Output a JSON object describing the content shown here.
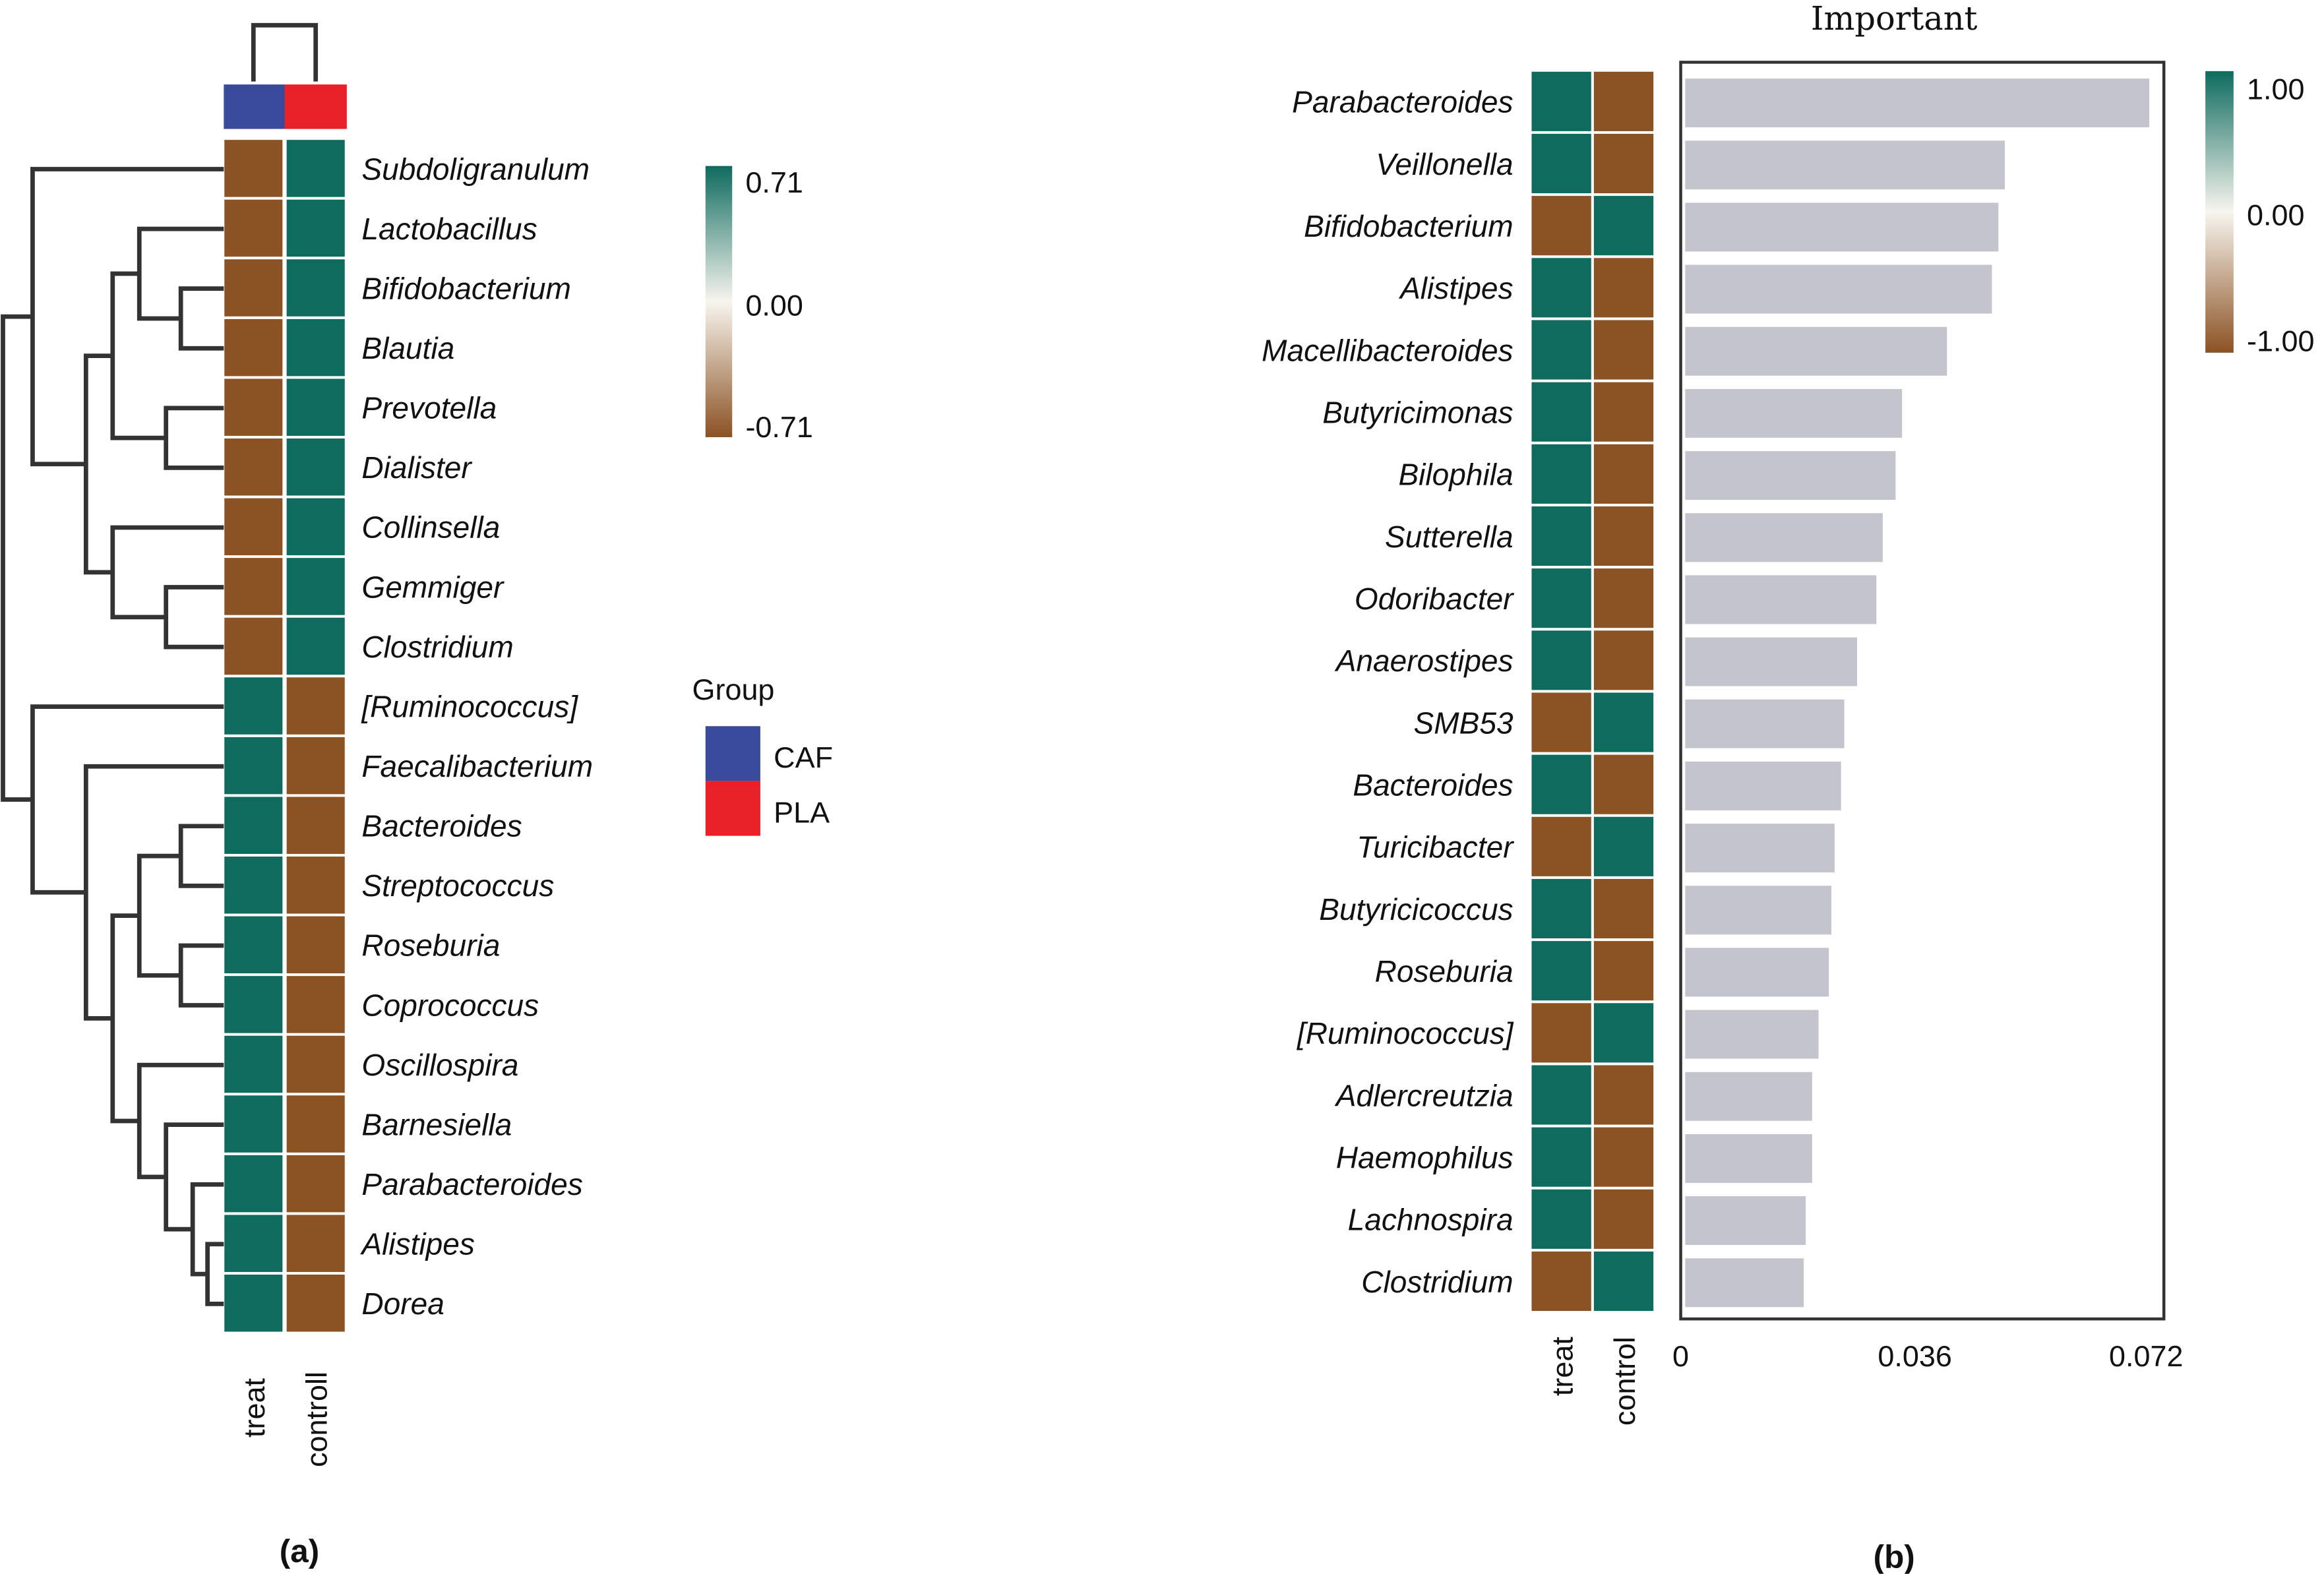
{
  "colors": {
    "positive": "#0e6b5e",
    "negative": "#8b5223",
    "mid": "#f7f5ee",
    "caf": "#3a4a9a",
    "pla": "#e82128",
    "bar": "#c4c4cc"
  },
  "chart_data": [
    {
      "type": "heatmap",
      "panel_label": "(a)",
      "columns": [
        "treat",
        "controll"
      ],
      "column_groups": [
        "CAF",
        "PLA"
      ],
      "rows": [
        "Subdoligranulum",
        "Lactobacillus",
        "Bifidobacterium",
        "Blautia",
        "Prevotella",
        "Dialister",
        "Collinsella",
        "Gemmiger",
        "Clostridium",
        "[Ruminococcus]",
        "Faecalibacterium",
        "Bacteroides",
        "Streptococcus",
        "Roseburia",
        "Coprococcus",
        "Oscillospira",
        "Barnesiella",
        "Parabacteroides",
        "Alistipes",
        "Dorea"
      ],
      "values": [
        [
          -0.71,
          0.71
        ],
        [
          -0.71,
          0.71
        ],
        [
          -0.71,
          0.71
        ],
        [
          -0.71,
          0.71
        ],
        [
          -0.71,
          0.71
        ],
        [
          -0.71,
          0.71
        ],
        [
          -0.71,
          0.71
        ],
        [
          -0.71,
          0.71
        ],
        [
          -0.71,
          0.71
        ],
        [
          0.71,
          -0.71
        ],
        [
          0.71,
          -0.71
        ],
        [
          0.71,
          -0.71
        ],
        [
          0.71,
          -0.71
        ],
        [
          0.71,
          -0.71
        ],
        [
          0.71,
          -0.71
        ],
        [
          0.71,
          -0.71
        ],
        [
          0.71,
          -0.71
        ],
        [
          0.71,
          -0.71
        ],
        [
          0.71,
          -0.71
        ],
        [
          0.71,
          -0.71
        ]
      ],
      "colorbar": {
        "ticks": [
          "0.71",
          "0.00",
          "-0.71"
        ],
        "range": [
          -0.71,
          0.71
        ]
      },
      "legend": {
        "title": "Group",
        "items": [
          "CAF",
          "PLA"
        ]
      }
    },
    {
      "type": "bar",
      "panel_label": "(b)",
      "title": "Important",
      "categories": [
        "Parabacteroides",
        "Veillonella",
        "Bifidobacterium",
        "Alistipes",
        "Macellibacteroides",
        "Butyricimonas",
        "Bilophila",
        "Sutterella",
        "Odoribacter",
        "Anaerostipes",
        "SMB53",
        "Bacteroides",
        "Turicibacter",
        "Butyricicoccus",
        "Roseburia",
        "[Ruminococcus]",
        "Adlercreutzia",
        "Haemophilus",
        "Lachnospira",
        "Clostridium"
      ],
      "values": [
        0.0725,
        0.05,
        0.049,
        0.048,
        0.041,
        0.034,
        0.033,
        0.031,
        0.03,
        0.027,
        0.025,
        0.0245,
        0.0235,
        0.023,
        0.0226,
        0.021,
        0.02,
        0.02,
        0.019,
        0.0187
      ],
      "heat_columns": [
        "treat",
        "control"
      ],
      "heat_values": [
        [
          1,
          -1
        ],
        [
          1,
          -1
        ],
        [
          -1,
          1
        ],
        [
          1,
          -1
        ],
        [
          1,
          -1
        ],
        [
          1,
          -1
        ],
        [
          1,
          -1
        ],
        [
          1,
          -1
        ],
        [
          1,
          -1
        ],
        [
          1,
          -1
        ],
        [
          -1,
          1
        ],
        [
          1,
          -1
        ],
        [
          -1,
          1
        ],
        [
          1,
          -1
        ],
        [
          1,
          -1
        ],
        [
          -1,
          1
        ],
        [
          1,
          -1
        ],
        [
          1,
          -1
        ],
        [
          1,
          -1
        ],
        [
          -1,
          1
        ]
      ],
      "xticks": [
        "0",
        "0.036",
        "0.072"
      ],
      "xtick_values": [
        0,
        0.036,
        0.072
      ],
      "xlim": [
        0,
        0.072
      ],
      "colorbar": {
        "ticks": [
          "1.00",
          "0.00",
          "-1.00"
        ],
        "range": [
          -1,
          1
        ]
      }
    }
  ]
}
